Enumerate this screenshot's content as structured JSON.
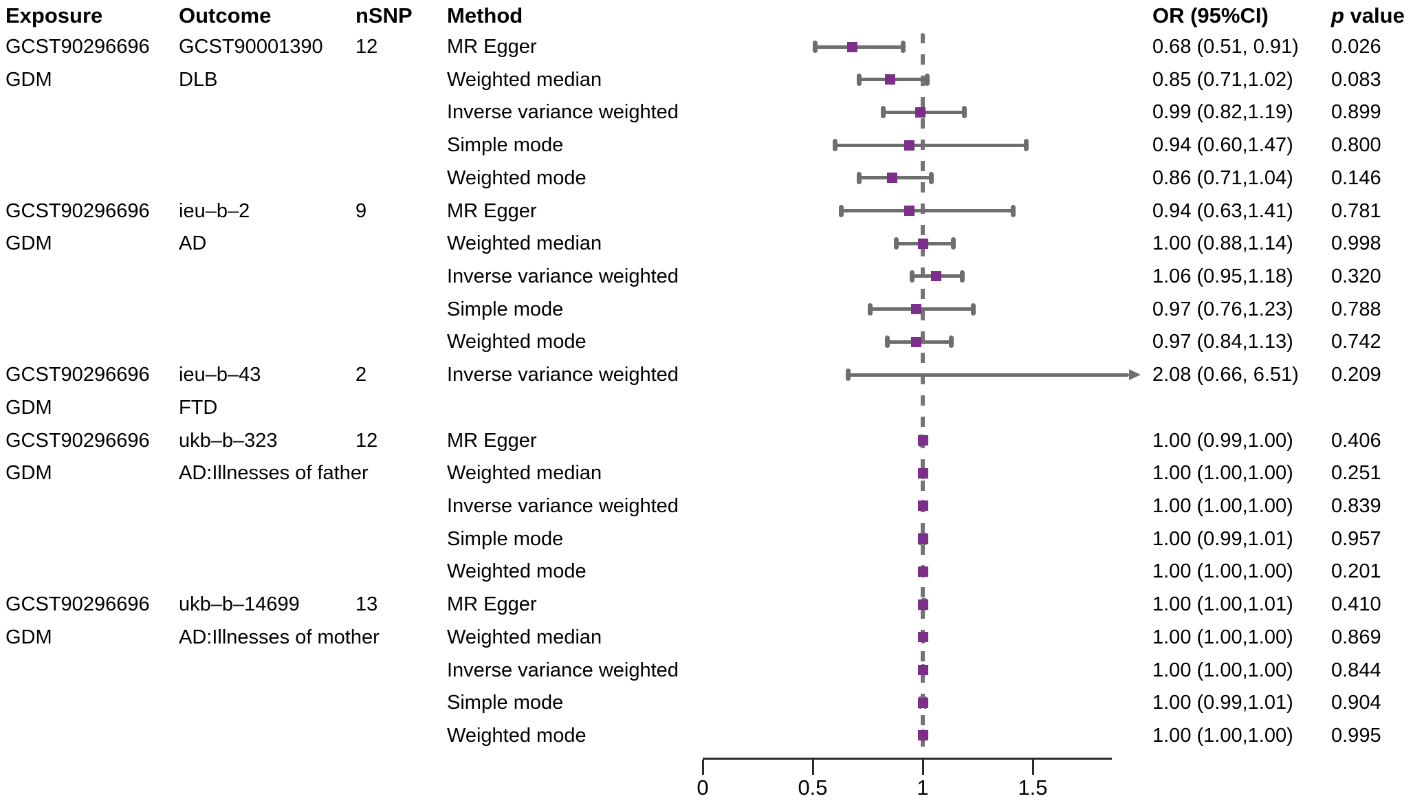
{
  "header": {
    "exposure": "Exposure",
    "outcome": "Outcome",
    "nsnp": "nSNP",
    "method": "Method",
    "or": "OR (95%CI)",
    "p_italic": "p",
    "p_rest": " value"
  },
  "colors": {
    "square": "#7c2e8a",
    "whisker": "#6e6e6e",
    "dash": "#757575",
    "axis": "#2b2b2b",
    "text": "#000000"
  },
  "chart_data": {
    "type": "forest",
    "title": "",
    "xlabel": "",
    "null_line": 1,
    "grid": false,
    "axis": {
      "min": 0,
      "max": 1.86,
      "ticks": [
        {
          "value": 0,
          "label": "0"
        },
        {
          "value": 0.5,
          "label": "0.5"
        },
        {
          "value": 1,
          "label": "1"
        },
        {
          "value": 1.5,
          "label": "1.5"
        }
      ]
    },
    "rows": [
      {
        "exposure": "GCST90296696",
        "outcome": "GCST90001390",
        "nsnp": "12",
        "method": "MR Egger",
        "or": 0.68,
        "lo": 0.51,
        "hi": 0.91,
        "or_text": "0.68 (0.51, 0.91)",
        "p": "0.026"
      },
      {
        "exposure": "GDM",
        "outcome": "DLB",
        "nsnp": "",
        "method": "Weighted median",
        "or": 0.85,
        "lo": 0.71,
        "hi": 1.02,
        "or_text": "0.85 (0.71,1.02)",
        "p": "0.083"
      },
      {
        "exposure": "",
        "outcome": "",
        "nsnp": "",
        "method": "Inverse variance weighted",
        "or": 0.99,
        "lo": 0.82,
        "hi": 1.19,
        "or_text": "0.99 (0.82,1.19)",
        "p": "0.899"
      },
      {
        "exposure": "",
        "outcome": "",
        "nsnp": "",
        "method": "Simple mode",
        "or": 0.94,
        "lo": 0.6,
        "hi": 1.47,
        "or_text": "0.94 (0.60,1.47)",
        "p": "0.800"
      },
      {
        "exposure": "",
        "outcome": "",
        "nsnp": "",
        "method": "Weighted mode",
        "or": 0.86,
        "lo": 0.71,
        "hi": 1.04,
        "or_text": "0.86 (0.71,1.04)",
        "p": "0.146"
      },
      {
        "exposure": "GCST90296696",
        "outcome": "ieu–b–2",
        "nsnp": "9",
        "method": "MR Egger",
        "or": 0.94,
        "lo": 0.63,
        "hi": 1.41,
        "or_text": "0.94 (0.63,1.41)",
        "p": "0.781"
      },
      {
        "exposure": "GDM",
        "outcome": "AD",
        "nsnp": "",
        "method": "Weighted median",
        "or": 1.0,
        "lo": 0.88,
        "hi": 1.14,
        "or_text": "1.00 (0.88,1.14)",
        "p": "0.998"
      },
      {
        "exposure": "",
        "outcome": "",
        "nsnp": "",
        "method": "Inverse variance weighted",
        "or": 1.06,
        "lo": 0.95,
        "hi": 1.18,
        "or_text": "1.06 (0.95,1.18)",
        "p": "0.320"
      },
      {
        "exposure": "",
        "outcome": "",
        "nsnp": "",
        "method": "Simple mode",
        "or": 0.97,
        "lo": 0.76,
        "hi": 1.23,
        "or_text": "0.97 (0.76,1.23)",
        "p": "0.788"
      },
      {
        "exposure": "",
        "outcome": "",
        "nsnp": "",
        "method": "Weighted mode",
        "or": 0.97,
        "lo": 0.84,
        "hi": 1.13,
        "or_text": "0.97 (0.84,1.13)",
        "p": "0.742"
      },
      {
        "exposure": "GCST90296696",
        "outcome": "ieu–b–43",
        "nsnp": "2",
        "method": "Inverse variance weighted",
        "or": 2.08,
        "lo": 0.66,
        "hi": 6.51,
        "arrow": true,
        "or_text": "2.08 (0.66, 6.51)",
        "p": "0.209"
      },
      {
        "exposure": "GDM",
        "outcome": "FTD",
        "nsnp": "",
        "method": "",
        "or": null,
        "lo": null,
        "hi": null,
        "or_text": "",
        "p": ""
      },
      {
        "exposure": "GCST90296696",
        "outcome": "ukb–b–323",
        "nsnp": "12",
        "method": "MR Egger",
        "or": 1.0,
        "lo": 0.99,
        "hi": 1.0,
        "or_text": "1.00 (0.99,1.00)",
        "p": "0.406"
      },
      {
        "exposure": "GDM",
        "outcome": "AD:Illnesses of father",
        "nsnp": "",
        "method": "Weighted median",
        "or": 1.0,
        "lo": 1.0,
        "hi": 1.0,
        "or_text": "1.00 (1.00,1.00)",
        "p": "0.251"
      },
      {
        "exposure": "",
        "outcome": "",
        "nsnp": "",
        "method": "Inverse variance weighted",
        "or": 1.0,
        "lo": 1.0,
        "hi": 1.0,
        "or_text": "1.00 (1.00,1.00)",
        "p": "0.839"
      },
      {
        "exposure": "",
        "outcome": "",
        "nsnp": "",
        "method": "Simple mode",
        "or": 1.0,
        "lo": 0.99,
        "hi": 1.01,
        "or_text": "1.00 (0.99,1.01)",
        "p": "0.957"
      },
      {
        "exposure": "",
        "outcome": "",
        "nsnp": "",
        "method": "Weighted mode",
        "or": 1.0,
        "lo": 1.0,
        "hi": 1.0,
        "or_text": "1.00 (1.00,1.00)",
        "p": "0.201"
      },
      {
        "exposure": "GCST90296696",
        "outcome": "ukb–b–14699",
        "nsnp": "13",
        "method": "MR Egger",
        "or": 1.0,
        "lo": 1.0,
        "hi": 1.01,
        "or_text": "1.00 (1.00,1.01)",
        "p": "0.410"
      },
      {
        "exposure": "GDM",
        "outcome": "AD:Illnesses of mother",
        "nsnp": "",
        "method": "Weighted median",
        "or": 1.0,
        "lo": 1.0,
        "hi": 1.0,
        "or_text": "1.00 (1.00,1.00)",
        "p": "0.869"
      },
      {
        "exposure": "",
        "outcome": "",
        "nsnp": "",
        "method": "Inverse variance weighted",
        "or": 1.0,
        "lo": 1.0,
        "hi": 1.0,
        "or_text": "1.00 (1.00,1.00)",
        "p": "0.844"
      },
      {
        "exposure": "",
        "outcome": "",
        "nsnp": "",
        "method": "Simple mode",
        "or": 1.0,
        "lo": 0.99,
        "hi": 1.01,
        "or_text": "1.00 (0.99,1.01)",
        "p": "0.904"
      },
      {
        "exposure": "",
        "outcome": "",
        "nsnp": "",
        "method": "Weighted mode",
        "or": 1.0,
        "lo": 1.0,
        "hi": 1.0,
        "or_text": "1.00 (1.00,1.00)",
        "p": "0.995"
      }
    ]
  }
}
